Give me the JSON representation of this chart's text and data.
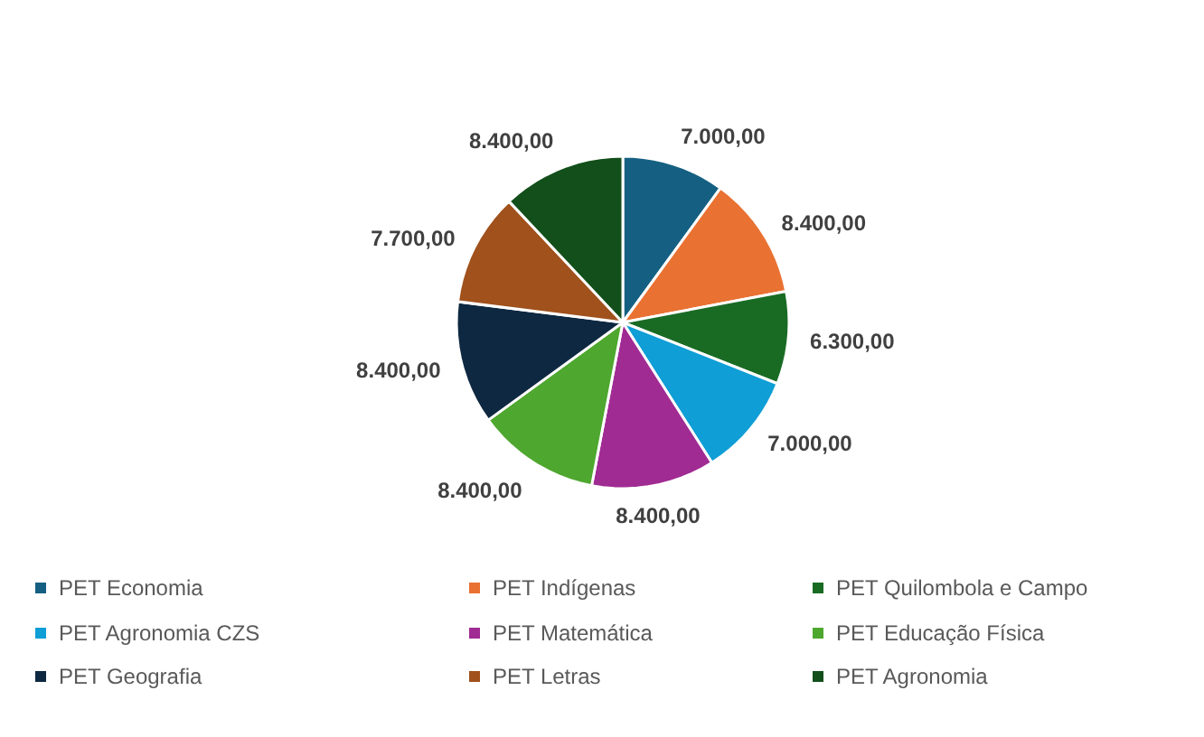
{
  "chart_data": {
    "type": "pie",
    "categories": [
      "PET Economia",
      "PET  Indígenas",
      "PET Quilombola e Campo",
      "PET Agronomia CZS",
      "PET Matemática",
      "PET Educação Física",
      "PET Geografia",
      "PET Letras",
      "PET Agronomia"
    ],
    "values": [
      7000,
      8400,
      6300,
      7000,
      8400,
      8400,
      8400,
      7700,
      8400
    ],
    "value_labels": [
      "7.000,00",
      "8.400,00",
      "6.300,00",
      "7.000,00",
      "8.400,00",
      "8.400,00",
      "8.400,00",
      "7.700,00",
      "8.400,00"
    ],
    "colors": [
      "#156082",
      "#e97132",
      "#196b24",
      "#0f9ed5",
      "#a02b93",
      "#4ea72e",
      "#0e2841",
      "#a0511c",
      "#124f1a"
    ],
    "legend": "bottom"
  }
}
